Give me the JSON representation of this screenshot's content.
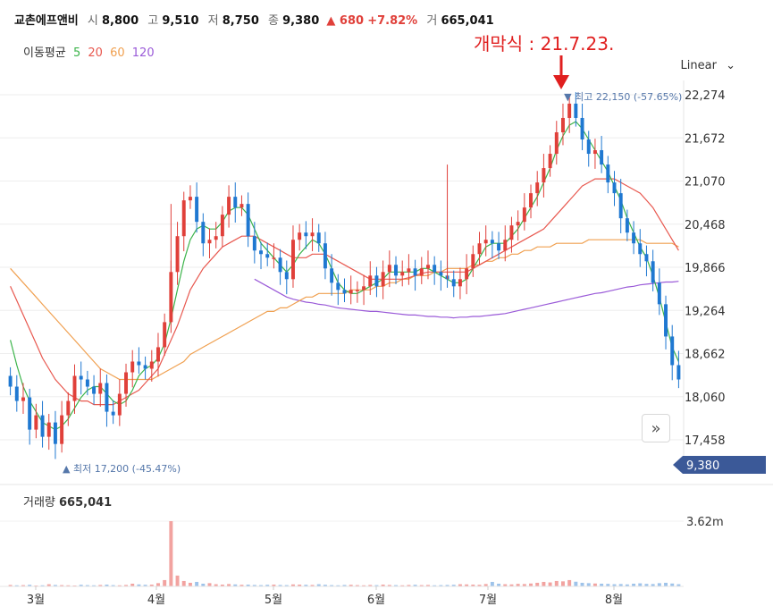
{
  "header": {
    "name": "교촌에프앤비",
    "open_label": "시",
    "open": "8,800",
    "high_label": "고",
    "high": "9,510",
    "low_label": "저",
    "low": "8,750",
    "close_label": "종",
    "close": "9,380",
    "change": "▲ 680",
    "change_pct": "+7.82%",
    "volume_label": "거",
    "volume": "665,041"
  },
  "ma_legend": {
    "label": "이동평균",
    "periods": [
      {
        "text": "5",
        "color": "#3cb44b"
      },
      {
        "text": "20",
        "color": "#e8584f"
      },
      {
        "text": "60",
        "color": "#f0a050"
      },
      {
        "text": "120",
        "color": "#9a5ad8"
      }
    ]
  },
  "scale_label": "Linear",
  "annotation": "개막식 : 21.7.23.",
  "colors": {
    "up": "#e0403a",
    "down": "#1f78d1",
    "price_tag": "#3b5998"
  },
  "chart_data": {
    "type": "candlestick",
    "y_ticks": [
      22274,
      21672,
      21070,
      20468,
      19866,
      19264,
      18662,
      18060,
      17458
    ],
    "ylim": [
      17100,
      22450
    ],
    "x_ticks": [
      "3월",
      "4월",
      "5월",
      "6월",
      "7월",
      "8월"
    ],
    "high_marker": "▼ 최고 22,150 (-57.65%)",
    "low_marker": "▲ 최저 17,200 (-45.47%)",
    "current_price": "9,380",
    "volume_title": "거래량",
    "volume_value": "665,041",
    "volume_tick": "3.62m",
    "volume_max": 3620000,
    "price_series_close": [
      18200,
      18000,
      18050,
      17600,
      17800,
      17500,
      17700,
      17400,
      17800,
      18000,
      18350,
      18300,
      18200,
      18100,
      18250,
      17850,
      17800,
      18100,
      18400,
      18550,
      18500,
      18450,
      18550,
      18750,
      19100,
      19800,
      20300,
      20800,
      20850,
      20500,
      20200,
      20250,
      20300,
      20600,
      20850,
      20700,
      20750,
      20300,
      20100,
      20050,
      20000,
      20000,
      19800,
      19700,
      20250,
      20350,
      20300,
      20350,
      20200,
      19850,
      19650,
      19550,
      19500,
      19550,
      19550,
      19600,
      19750,
      19600,
      19800,
      19900,
      19750,
      19800,
      19850,
      19750,
      19850,
      19900,
      19800,
      19750,
      19700,
      19600,
      19700,
      19850,
      20050,
      20200,
      20250,
      20200,
      20100,
      20250,
      20450,
      20500,
      20700,
      20900,
      21050,
      21250,
      21450,
      21750,
      21950,
      22150,
      21950,
      21650,
      21450,
      21500,
      21300,
      21050,
      20900,
      20550,
      20350,
      20200,
      20050,
      19950,
      19650,
      19350,
      18900,
      18500,
      18300
    ],
    "ma5": [
      18850,
      18500,
      18200,
      18000,
      17850,
      17700,
      17650,
      17600,
      17650,
      17750,
      17900,
      18050,
      18150,
      18200,
      18200,
      18100,
      18000,
      17950,
      18000,
      18150,
      18350,
      18450,
      18500,
      18600,
      18800,
      19150,
      19550,
      19950,
      20250,
      20400,
      20450,
      20400,
      20400,
      20500,
      20650,
      20700,
      20700,
      20600,
      20400,
      20200,
      20100,
      20000,
      19900,
      19800,
      19900,
      20050,
      20150,
      20250,
      20200,
      20050,
      19850,
      19650,
      19550,
      19500,
      19500,
      19550,
      19600,
      19650,
      19700,
      19800,
      19800,
      19800,
      19800,
      19800,
      19850,
      19850,
      19800,
      19750,
      19700,
      19650,
      19650,
      19700,
      19850,
      20000,
      20150,
      20200,
      20200,
      20200,
      20300,
      20400,
      20550,
      20700,
      20850,
      21050,
      21250,
      21500,
      21700,
      21850,
      21900,
      21800,
      21650,
      21500,
      21350,
      21200,
      21000,
      20800,
      20550,
      20350,
      20150,
      20000,
      19750,
      19450,
      19100,
      18750,
      18550
    ],
    "ma20": [
      19600,
      19400,
      19200,
      19000,
      18800,
      18600,
      18450,
      18300,
      18200,
      18100,
      18050,
      18000,
      18000,
      17950,
      17950,
      17950,
      17950,
      18000,
      18050,
      18100,
      18150,
      18250,
      18350,
      18450,
      18650,
      18850,
      19050,
      19300,
      19550,
      19700,
      19850,
      19950,
      20050,
      20150,
      20200,
      20250,
      20300,
      20300,
      20300,
      20250,
      20200,
      20150,
      20100,
      20050,
      20000,
      20000,
      20000,
      20050,
      20050,
      20050,
      20000,
      19950,
      19900,
      19850,
      19800,
      19750,
      19700,
      19700,
      19700,
      19700,
      19700,
      19700,
      19720,
      19750,
      19780,
      19800,
      19800,
      19800,
      19800,
      19800,
      19800,
      19800,
      19850,
      19900,
      19950,
      20000,
      20050,
      20100,
      20150,
      20200,
      20250,
      20300,
      20350,
      20400,
      20500,
      20600,
      20700,
      20800,
      20900,
      21000,
      21050,
      21100,
      21100,
      21100,
      21100,
      21050,
      21000,
      20950,
      20900,
      20800,
      20700,
      20550,
      20400,
      20250,
      20100
    ],
    "ma60": [
      19850,
      19750,
      19650,
      19550,
      19450,
      19350,
      19250,
      19150,
      19050,
      18950,
      18850,
      18750,
      18650,
      18550,
      18450,
      18400,
      18350,
      18300,
      18300,
      18300,
      18300,
      18300,
      18300,
      18350,
      18400,
      18450,
      18500,
      18550,
      18650,
      18700,
      18750,
      18800,
      18850,
      18900,
      18950,
      19000,
      19050,
      19100,
      19150,
      19200,
      19250,
      19250,
      19300,
      19300,
      19350,
      19400,
      19450,
      19450,
      19500,
      19500,
      19500,
      19500,
      19500,
      19550,
      19550,
      19550,
      19550,
      19600,
      19600,
      19650,
      19650,
      19700,
      19700,
      19750,
      19750,
      19750,
      19800,
      19800,
      19850,
      19850,
      19850,
      19850,
      19900,
      19900,
      19950,
      19950,
      20000,
      20000,
      20050,
      20050,
      20100,
      20100,
      20150,
      20150,
      20150,
      20200,
      20200,
      20200,
      20200,
      20200,
      20250,
      20250,
      20250,
      20250,
      20250,
      20250,
      20250,
      20250,
      20250,
      20200,
      20200,
      20200,
      20200,
      20200,
      20150
    ],
    "ma120": [
      null,
      null,
      null,
      null,
      null,
      null,
      null,
      null,
      null,
      null,
      null,
      null,
      null,
      null,
      null,
      null,
      null,
      null,
      null,
      null,
      null,
      null,
      null,
      null,
      null,
      null,
      null,
      null,
      null,
      null,
      null,
      null,
      null,
      null,
      null,
      null,
      null,
      null,
      19700,
      19650,
      19600,
      19550,
      19500,
      19450,
      19420,
      19400,
      19380,
      19370,
      19350,
      19340,
      19320,
      19300,
      19290,
      19280,
      19270,
      19260,
      19250,
      19250,
      19240,
      19230,
      19220,
      19210,
      19200,
      19200,
      19190,
      19180,
      19180,
      19170,
      19170,
      19160,
      19170,
      19170,
      19180,
      19180,
      19190,
      19200,
      19210,
      19220,
      19240,
      19260,
      19280,
      19300,
      19320,
      19340,
      19360,
      19380,
      19400,
      19420,
      19440,
      19460,
      19480,
      19500,
      19510,
      19530,
      19550,
      19570,
      19590,
      19600,
      19620,
      19630,
      19640,
      19650,
      19660,
      19660,
      19670
    ],
    "volume_values": [
      80000,
      60000,
      70000,
      90000,
      50000,
      60000,
      120000,
      80000,
      70000,
      60000,
      50000,
      90000,
      70000,
      60000,
      80000,
      100000,
      70000,
      60000,
      80000,
      150000,
      110000,
      90000,
      100000,
      180000,
      350000,
      3620000,
      600000,
      300000,
      200000,
      250000,
      150000,
      180000,
      120000,
      100000,
      130000,
      110000,
      90000,
      100000,
      80000,
      70000,
      90000,
      100000,
      80000,
      70000,
      110000,
      100000,
      90000,
      80000,
      120000,
      90000,
      70000,
      60000,
      80000,
      90000,
      70000,
      60000,
      80000,
      70000,
      100000,
      80000,
      70000,
      60000,
      80000,
      90000,
      70000,
      80000,
      60000,
      70000,
      80000,
      90000,
      120000,
      110000,
      100000,
      90000,
      130000,
      250000,
      150000,
      120000,
      110000,
      140000,
      130000,
      160000,
      200000,
      250000,
      220000,
      300000,
      280000,
      350000,
      260000,
      200000,
      180000,
      160000,
      150000,
      140000,
      120000,
      130000,
      110000,
      150000,
      170000,
      140000,
      130000,
      180000,
      200000,
      160000,
      120000
    ]
  }
}
